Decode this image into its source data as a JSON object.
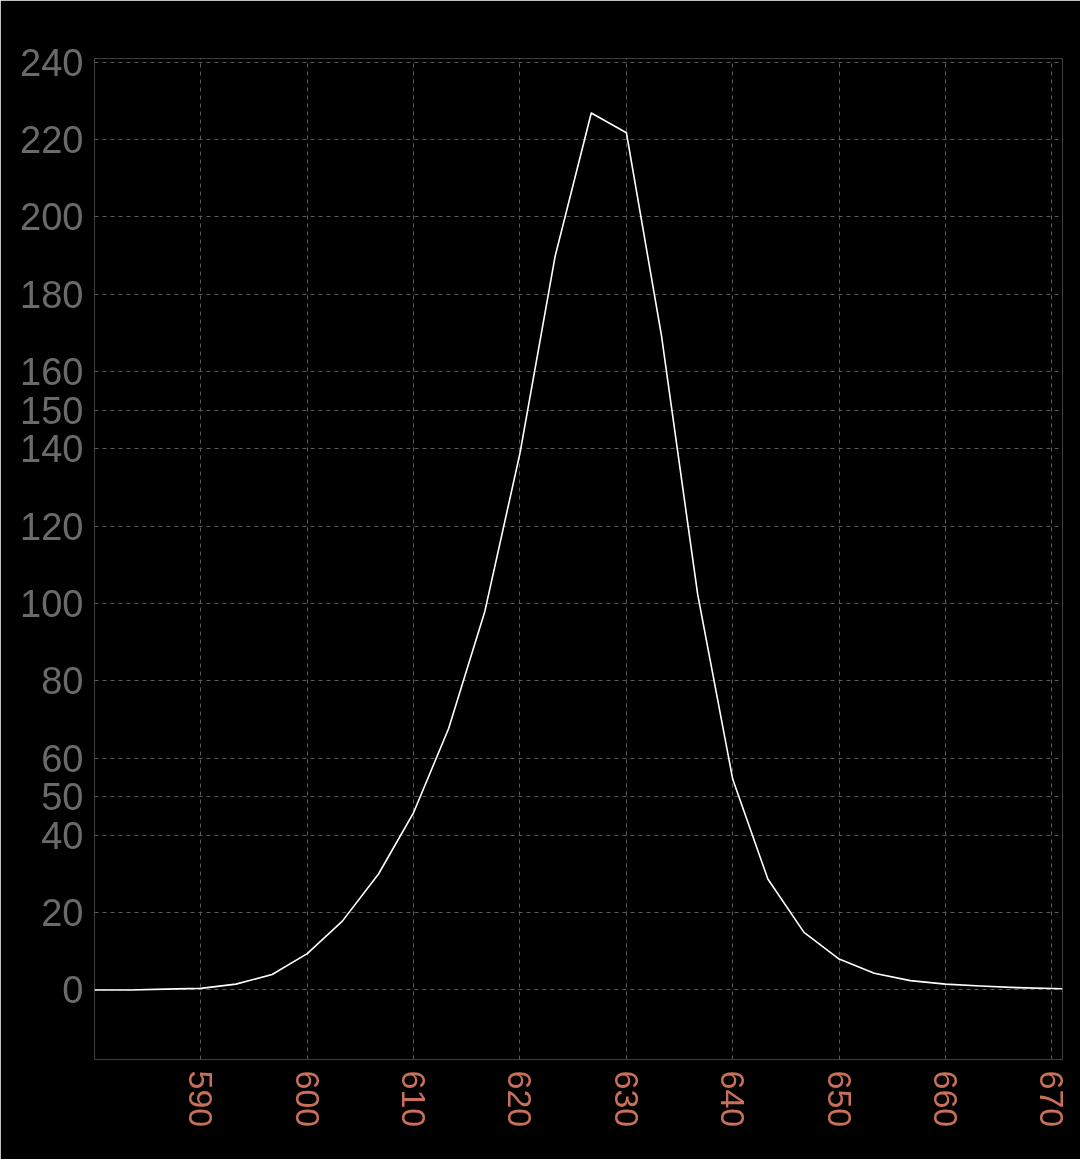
{
  "chart_data": {
    "type": "line",
    "x": [
      580,
      583.3,
      586.7,
      590,
      593.3,
      596.7,
      600,
      603.3,
      606.7,
      610,
      613.3,
      616.7,
      620,
      623.3,
      626.7,
      630,
      633.3,
      636.7,
      640,
      643.3,
      646.7,
      650,
      653.3,
      656.7,
      660,
      663.3,
      666.7,
      671
    ],
    "series": [
      {
        "color": "#ffffff",
        "values": [
          0,
          0,
          0.2,
          0.4,
          1.5,
          4.0,
          9.4,
          17.8,
          30.0,
          45.9,
          67.7,
          98.0,
          138.9,
          189.8,
          226.9,
          221.8,
          169.3,
          102.4,
          54.5,
          28.7,
          14.9,
          8.0,
          4.3,
          2.4,
          1.5,
          1.0,
          0.6,
          0.3
        ]
      }
    ],
    "xlim": [
      580,
      671
    ],
    "xticks": [
      590,
      600,
      610,
      620,
      630,
      640,
      650,
      660,
      670
    ],
    "ylim": [
      -18,
      241
    ],
    "yticks": [
      0,
      20,
      40,
      50,
      60,
      80,
      100,
      120,
      140,
      150,
      160,
      180,
      200,
      220,
      240
    ],
    "grid": true,
    "marker": "none",
    "line_style": "solid"
  }
}
